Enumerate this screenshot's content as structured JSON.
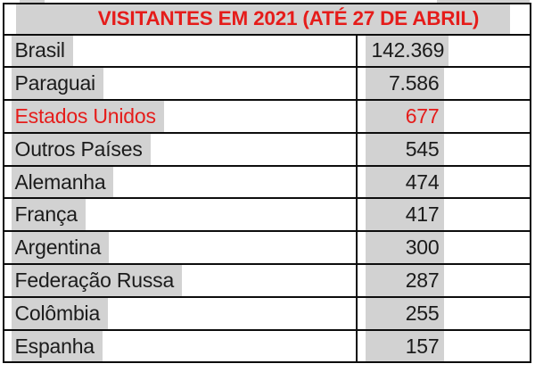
{
  "header": {
    "title": "VISITANTES EM 2021 (ATÉ 27 DE ABRIL)"
  },
  "table": {
    "rows": [
      {
        "name": "Brasil",
        "value": "142.369",
        "emphasis": "normal"
      },
      {
        "name": "Paraguai",
        "value": "7.586",
        "emphasis": "normal"
      },
      {
        "name": "Estados Unidos",
        "value": "677",
        "emphasis": "red"
      },
      {
        "name": "Outros Países",
        "value": "545",
        "emphasis": "normal"
      },
      {
        "name": "Alemanha",
        "value": "474",
        "emphasis": "normal"
      },
      {
        "name": "França",
        "value": "417",
        "emphasis": "normal"
      },
      {
        "name": "Argentina",
        "value": "300",
        "emphasis": "normal"
      },
      {
        "name": "Federação Russa",
        "value": "287",
        "emphasis": "normal"
      },
      {
        "name": "Colômbia",
        "value": "255",
        "emphasis": "normal"
      },
      {
        "name": "Espanha",
        "value": "157",
        "emphasis": "normal"
      }
    ]
  },
  "colors": {
    "accent_red": "#e51c1a",
    "highlight_gray": "#d2d2d2",
    "border_black": "#0d0d0d"
  }
}
